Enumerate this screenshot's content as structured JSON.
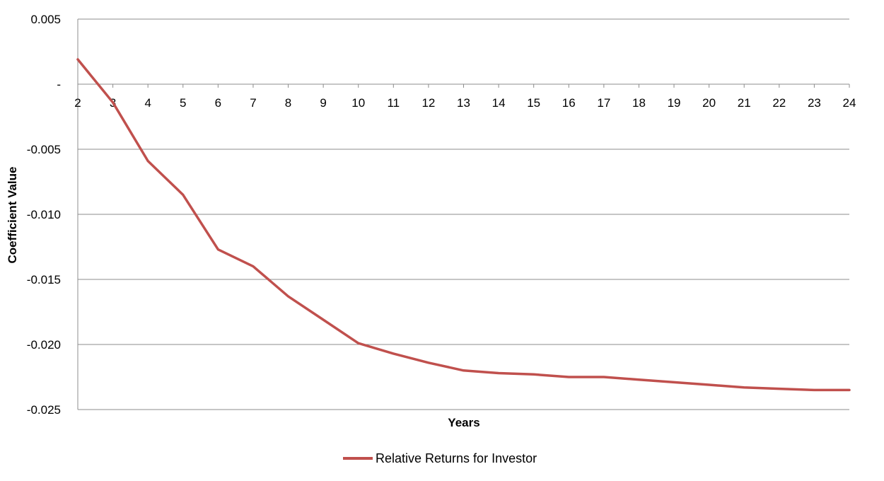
{
  "chart_data": {
    "type": "line",
    "title": "",
    "xlabel": "Years",
    "ylabel": "Coefficient Value",
    "x": [
      "2",
      "3",
      "4",
      "5",
      "6",
      "7",
      "8",
      "9",
      "10",
      "11",
      "12",
      "13",
      "14",
      "15",
      "16",
      "17",
      "18",
      "19",
      "20",
      "21",
      "22",
      "23",
      "24"
    ],
    "series": [
      {
        "name": "Relative Returns for Investor",
        "color": "#C0504D",
        "values": [
          0.0019,
          -0.0014,
          -0.0059,
          -0.0085,
          -0.0127,
          -0.014,
          -0.0163,
          -0.0181,
          -0.0199,
          -0.0207,
          -0.0214,
          -0.022,
          -0.0222,
          -0.0223,
          -0.0225,
          -0.0225,
          -0.0227,
          -0.0229,
          -0.0231,
          -0.0233,
          -0.0234,
          -0.0235,
          -0.0235
        ]
      }
    ],
    "ylim": [
      -0.025,
      0.005
    ],
    "yticks": [
      0.005,
      0,
      -0.005,
      -0.01,
      -0.015,
      -0.02,
      -0.025
    ],
    "ytick_labels": [
      "0.005",
      "-",
      "-0.005",
      "-0.010",
      "-0.015",
      "-0.020",
      "-0.025"
    ],
    "grid": true,
    "legend_position": "bottom"
  }
}
